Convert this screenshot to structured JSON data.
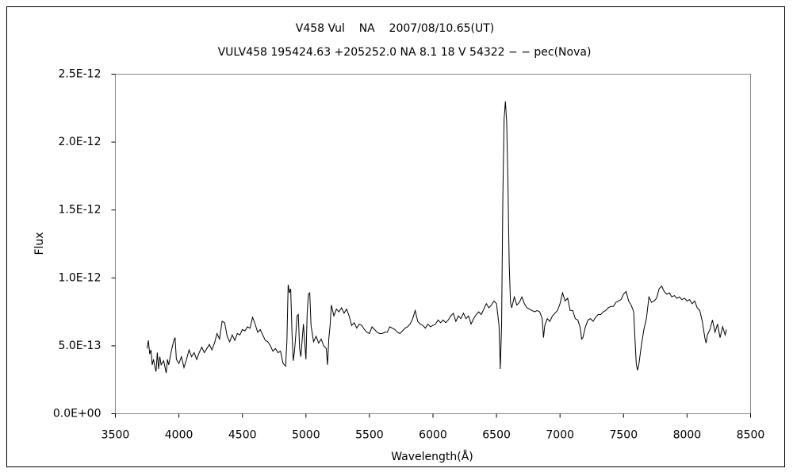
{
  "chart_data": {
    "type": "line",
    "title": "V458 Vul    NA    2007/08/10.65(UT)",
    "subtitle": "VULV458 195424.63 +205252.0 NA 8.1 18 V 54322 − − pec(Nova)",
    "x_label": "Wavelength(Å)",
    "y_label": "Flux",
    "color": "#000000",
    "xlim": [
      3500,
      8500
    ],
    "xticks": [
      3500,
      4000,
      4500,
      5000,
      5500,
      6000,
      6500,
      7000,
      7500,
      8000,
      8500
    ],
    "ylim": [
      0,
      2.5e-12
    ],
    "yticks": [
      {
        "value": 0,
        "label": "0.0E+00"
      },
      {
        "value": 5e-13,
        "label": "5.0E-13"
      },
      {
        "value": 1e-12,
        "label": "1.0E-12"
      },
      {
        "value": 1.5e-12,
        "label": "1.5E-12"
      },
      {
        "value": 2e-12,
        "label": "2.0E-12"
      },
      {
        "value": 2.5e-12,
        "label": "2.5E-12"
      }
    ],
    "x": [
      3750,
      3760,
      3770,
      3780,
      3790,
      3800,
      3810,
      3820,
      3830,
      3840,
      3850,
      3860,
      3880,
      3900,
      3910,
      3920,
      3940,
      3960,
      3970,
      3980,
      4000,
      4020,
      4040,
      4060,
      4080,
      4100,
      4120,
      4140,
      4160,
      4180,
      4200,
      4220,
      4240,
      4260,
      4280,
      4300,
      4320,
      4340,
      4360,
      4380,
      4400,
      4420,
      4440,
      4460,
      4480,
      4500,
      4520,
      4540,
      4560,
      4580,
      4600,
      4620,
      4640,
      4660,
      4680,
      4700,
      4720,
      4740,
      4760,
      4780,
      4800,
      4820,
      4840,
      4850,
      4860,
      4870,
      4880,
      4890,
      4900,
      4910,
      4920,
      4930,
      4940,
      4950,
      4960,
      4980,
      5000,
      5010,
      5020,
      5030,
      5040,
      5060,
      5080,
      5100,
      5120,
      5140,
      5160,
      5170,
      5180,
      5190,
      5200,
      5220,
      5240,
      5260,
      5280,
      5300,
      5320,
      5340,
      5360,
      5380,
      5400,
      5420,
      5440,
      5460,
      5480,
      5500,
      5520,
      5540,
      5560,
      5580,
      5600,
      5620,
      5640,
      5660,
      5680,
      5700,
      5720,
      5740,
      5760,
      5780,
      5800,
      5820,
      5840,
      5860,
      5880,
      5900,
      5920,
      5940,
      5960,
      5980,
      6000,
      6020,
      6040,
      6060,
      6080,
      6100,
      6120,
      6140,
      6160,
      6180,
      6200,
      6220,
      6240,
      6260,
      6280,
      6300,
      6320,
      6340,
      6360,
      6380,
      6400,
      6420,
      6440,
      6460,
      6480,
      6500,
      6520,
      6530,
      6540,
      6550,
      6560,
      6570,
      6580,
      6590,
      6600,
      6610,
      6620,
      6640,
      6660,
      6680,
      6700,
      6720,
      6740,
      6760,
      6780,
      6800,
      6820,
      6840,
      6860,
      6870,
      6880,
      6900,
      6920,
      6940,
      6960,
      6980,
      7000,
      7020,
      7040,
      7060,
      7080,
      7100,
      7120,
      7140,
      7160,
      7170,
      7180,
      7200,
      7220,
      7240,
      7260,
      7280,
      7300,
      7320,
      7340,
      7360,
      7380,
      7400,
      7420,
      7440,
      7460,
      7480,
      7500,
      7520,
      7540,
      7560,
      7580,
      7590,
      7600,
      7610,
      7620,
      7640,
      7660,
      7680,
      7700,
      7720,
      7740,
      7760,
      7780,
      7800,
      7820,
      7840,
      7860,
      7880,
      7900,
      7920,
      7940,
      7960,
      7980,
      8000,
      8020,
      8040,
      8060,
      8080,
      8100,
      8120,
      8140,
      8150,
      8160,
      8180,
      8200,
      8220,
      8240,
      8260,
      8280,
      8300,
      8310
    ],
    "values": [
      4.8e-13,
      5.4e-13,
      4.4e-13,
      4.7e-13,
      3.6e-13,
      4e-13,
      3.5e-13,
      3.1e-13,
      4.5e-13,
      3.3e-13,
      4.2e-13,
      3.6e-13,
      3.9e-13,
      3e-13,
      4e-13,
      3.6e-13,
      4.6e-13,
      5.4e-13,
      5.6e-13,
      4e-13,
      3.7e-13,
      4.2e-13,
      3.4e-13,
      4e-13,
      4.7e-13,
      4.2e-13,
      4.5e-13,
      4e-13,
      4.5e-13,
      4.9e-13,
      4.5e-13,
      4.8e-13,
      5.1e-13,
      4.7e-13,
      5.2e-13,
      5.9e-13,
      5.5e-13,
      6.8e-13,
      6.7e-13,
      5.7e-13,
      5.3e-13,
      5.8e-13,
      5.4e-13,
      5.9e-13,
      5.8e-13,
      6.2e-13,
      6.1e-13,
      6.4e-13,
      6.3e-13,
      7.1e-13,
      6.6e-13,
      6e-13,
      6.2e-13,
      5.8e-13,
      5.4e-13,
      5.3e-13,
      5e-13,
      4.6e-13,
      4.8e-13,
      4.5e-13,
      4.6e-13,
      3.7e-13,
      3.5e-13,
      5.3e-13,
      9.5e-13,
      8.9e-13,
      9.2e-13,
      6e-13,
      3.9e-13,
      4.6e-13,
      5.8e-13,
      7.2e-13,
      7.3e-13,
      4.8e-13,
      4.2e-13,
      6.6e-13,
      4e-13,
      7.5e-13,
      8.8e-13,
      8.9e-13,
      6.5e-13,
      5.3e-13,
      5.7e-13,
      5.2e-13,
      5.5e-13,
      5e-13,
      4.8e-13,
      3.6e-13,
      5.5e-13,
      6.5e-13,
      8e-13,
      7.2e-13,
      7.7e-13,
      7.5e-13,
      7.8e-13,
      7.4e-13,
      7.7e-13,
      7.2e-13,
      6.5e-13,
      6.7e-13,
      6.3e-13,
      6.6e-13,
      6.5e-13,
      6.2e-13,
      6e-13,
      5.9e-13,
      6.4e-13,
      6.2e-13,
      6e-13,
      5.9e-13,
      5.9e-13,
      6e-13,
      6e-13,
      6.4e-13,
      6.3e-13,
      6.2e-13,
      6e-13,
      5.9e-13,
      6.1e-13,
      6.3e-13,
      6.4e-13,
      6.6e-13,
      7e-13,
      7.6e-13,
      6.8e-13,
      6.6e-13,
      6.5e-13,
      6.3e-13,
      6.6e-13,
      6.4e-13,
      6.5e-13,
      6.6e-13,
      6.9e-13,
      6.7e-13,
      6.9e-13,
      6.7e-13,
      6.9e-13,
      7.2e-13,
      7.4e-13,
      6.8e-13,
      7.2e-13,
      7e-13,
      7.4e-13,
      7e-13,
      7.2e-13,
      6.6e-13,
      7e-13,
      7.3e-13,
      7.5e-13,
      7.3e-13,
      7.7e-13,
      8.1e-13,
      7.8e-13,
      8e-13,
      8.3e-13,
      8.1e-13,
      6.5e-13,
      3.3e-13,
      6.5e-13,
      1.6e-12,
      2.17e-12,
      2.3e-12,
      2.15e-12,
      1.7e-12,
      1.1e-12,
      8.2e-13,
      7.8e-13,
      8.6e-13,
      8e-13,
      8.2e-13,
      8.6e-13,
      8.1e-13,
      7.8e-13,
      7.7e-13,
      7.6e-13,
      7.5e-13,
      7.6e-13,
      7.5e-13,
      7e-13,
      5.6e-13,
      6.5e-13,
      7e-13,
      6.8e-13,
      7.2e-13,
      7.4e-13,
      7.6e-13,
      8.1e-13,
      8.9e-13,
      8.3e-13,
      8.5e-13,
      7.6e-13,
      7.6e-13,
      7e-13,
      6.9e-13,
      6.3e-13,
      5.5e-13,
      5.6e-13,
      6.4e-13,
      6.9e-13,
      7e-13,
      6.8e-13,
      7.1e-13,
      7.3e-13,
      7.3e-13,
      7.5e-13,
      7.6e-13,
      7.8e-13,
      7.9e-13,
      7.9e-13,
      8.2e-13,
      8.3e-13,
      8.4e-13,
      8.8e-13,
      9e-13,
      8.3e-13,
      8e-13,
      7.5e-13,
      5.5e-13,
      3.7e-13,
      3.2e-13,
      3.6e-13,
      5e-13,
      6.2e-13,
      7e-13,
      8.6e-13,
      8.2e-13,
      8.3e-13,
      8.5e-13,
      9.2e-13,
      9.4e-13,
      9e-13,
      8.8e-13,
      8.9e-13,
      8.6e-13,
      8.7e-13,
      8.5e-13,
      8.6e-13,
      8.4e-13,
      8.5e-13,
      8.3e-13,
      8.4e-13,
      8.1e-13,
      8.3e-13,
      7.8e-13,
      7.6e-13,
      6.8e-13,
      5.6e-13,
      5.2e-13,
      5.8e-13,
      6.2e-13,
      6.9e-13,
      6e-13,
      6.6e-13,
      5.6e-13,
      6.4e-13,
      5.8e-13,
      6.2e-13
    ]
  }
}
